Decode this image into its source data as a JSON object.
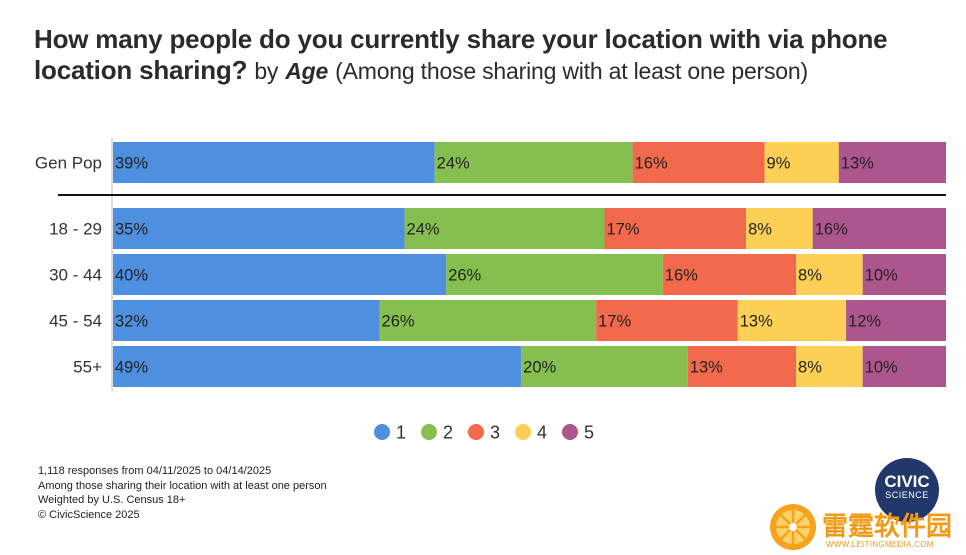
{
  "header": {
    "title_bold": "How many people do you currently share your location with via phone location sharing?",
    "by_word": "by",
    "age_word": "Age",
    "subtitle": "(Among those sharing with at least one person)"
  },
  "chart_data": {
    "type": "bar",
    "orientation": "horizontal",
    "stacked": "100%",
    "categories": [
      "Gen Pop",
      "18 - 29",
      "30 - 44",
      "45 - 54",
      "55+"
    ],
    "series": [
      {
        "name": "1",
        "color": "#4e8fe0",
        "values": [
          39,
          35,
          40,
          32,
          49
        ]
      },
      {
        "name": "2",
        "color": "#85bf50",
        "values": [
          24,
          24,
          26,
          26,
          20
        ]
      },
      {
        "name": "3",
        "color": "#f26a4b",
        "values": [
          16,
          17,
          16,
          17,
          13
        ]
      },
      {
        "name": "4",
        "color": "#fcd055",
        "values": [
          9,
          8,
          8,
          13,
          8
        ]
      },
      {
        "name": "5",
        "color": "#ad558d",
        "values": [
          13,
          16,
          10,
          12,
          10
        ]
      }
    ],
    "value_suffix": "%",
    "legend_position": "bottom-center",
    "separator_after_first_row": true
  },
  "footnotes": [
    "1,118 responses from 04/11/2025 to 04/14/2025",
    "Among those sharing their location with at least one person",
    "Weighted by U.S. Census 18+",
    "© CivicScience 2025"
  ],
  "logo": {
    "line1": "CIVIC",
    "line2": "SCIENCE"
  },
  "watermark": {
    "name": "雷霆软件园",
    "url": "WWW.LEITINGMEDIA.COM"
  }
}
